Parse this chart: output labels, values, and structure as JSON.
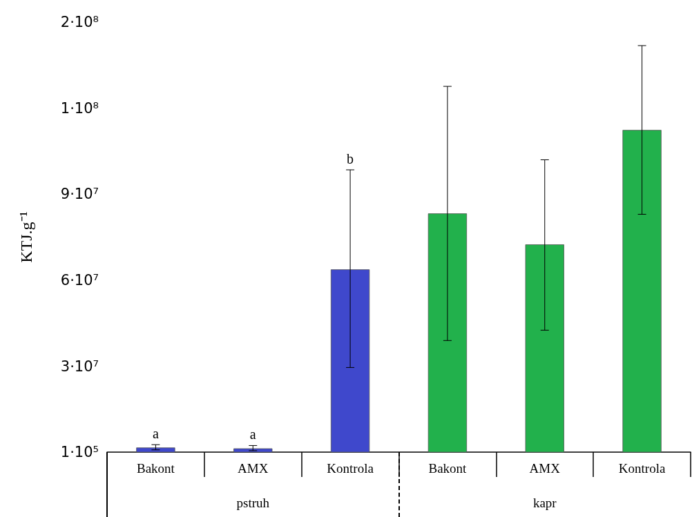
{
  "chart_data": {
    "type": "bar",
    "ylabel": "KTJ.g⁻¹",
    "categories": [
      "Bakont",
      "AMX",
      "Kontrola",
      "Bakont",
      "AMX",
      "Kontrola"
    ],
    "values": [
      1700000,
      1400000,
      63800000,
      83300000,
      72500000,
      112400000
    ],
    "colors": [
      "#3f48cc",
      "#3f48cc",
      "#3f48cc",
      "#22b14c",
      "#22b14c",
      "#22b14c"
    ],
    "errors": [
      [
        900000,
        2700000
      ],
      [
        600000,
        2400000
      ],
      [
        29600000,
        98500000
      ],
      [
        39000000,
        127600000
      ],
      [
        42600000,
        102000000
      ],
      [
        83000000,
        141800000
      ]
    ],
    "ylim": [
      100000,
      150000000
    ],
    "yticks": [
      {
        "value": 100000,
        "label": "1·10⁵"
      },
      {
        "value": 30000000,
        "label": "3·10⁷"
      },
      {
        "value": 60000000,
        "label": "6·10⁷"
      },
      {
        "value": 90000000,
        "label": "9·10⁷"
      },
      {
        "value": 120000000,
        "label": "1·10⁸"
      },
      {
        "value": 150000000,
        "label": "2·10⁸"
      }
    ],
    "annotations": [
      {
        "text": "a",
        "x": "Bakont",
        "y": 2700000
      },
      {
        "text": "a",
        "x": "AMX",
        "y": 2400000
      },
      {
        "text": "b",
        "x": "Kontrola",
        "y": 98500000
      },
      "pstruh",
      "kapr"
    ],
    "grid": false
  }
}
